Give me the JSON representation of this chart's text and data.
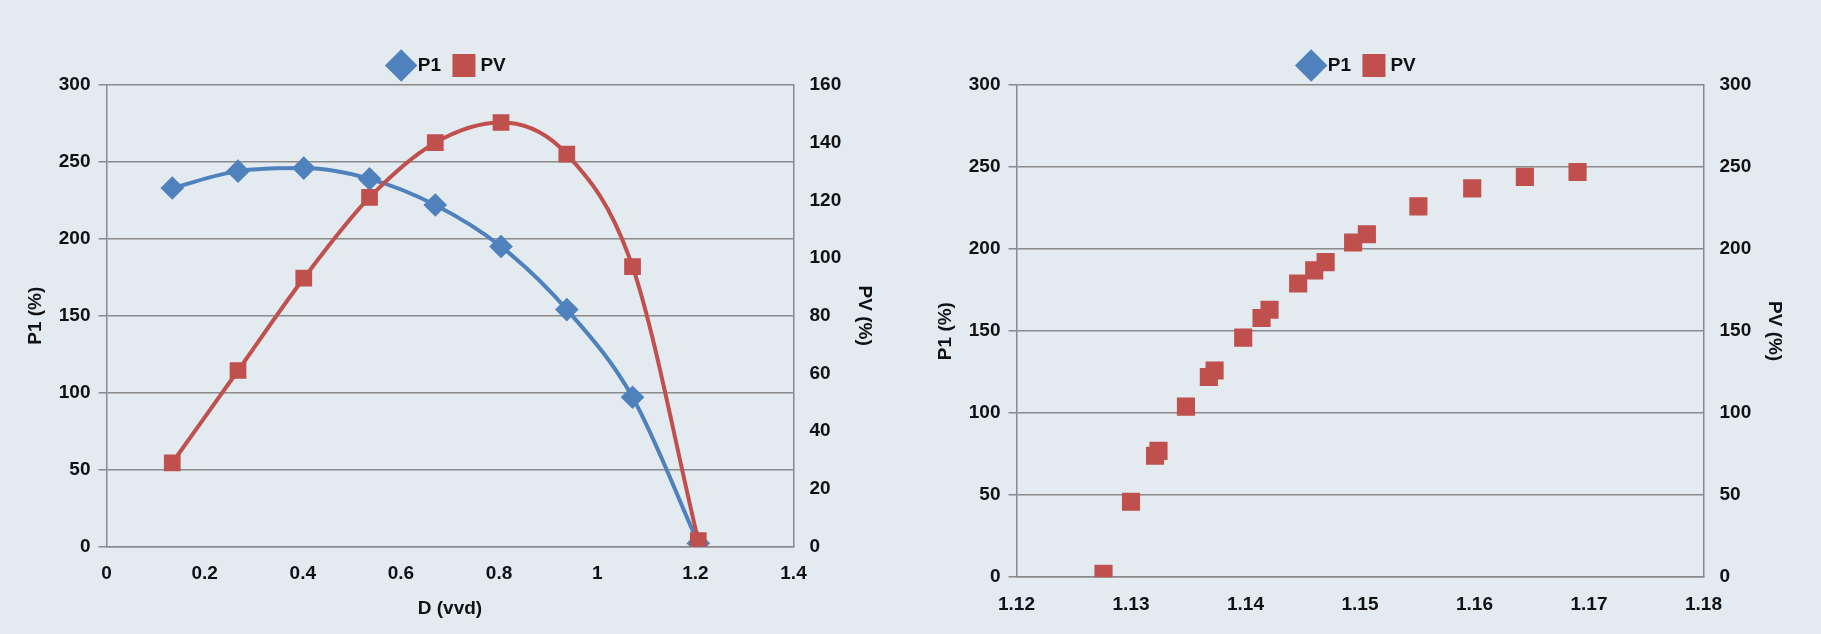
{
  "chart_data": [
    {
      "type": "line",
      "xlabel": "D (vvd)",
      "ylabel": "P1 (%)",
      "y2label": "PV (%)",
      "xlim": [
        0,
        1.4
      ],
      "xticks": [
        0,
        0.2,
        0.4,
        0.6,
        0.8,
        1,
        1.2,
        1.4
      ],
      "ylim": [
        0,
        300
      ],
      "yticks": [
        0,
        50,
        100,
        150,
        200,
        250,
        300
      ],
      "y2lim": [
        0,
        160
      ],
      "y2ticks": [
        0,
        20,
        40,
        60,
        80,
        100,
        120,
        140,
        160
      ],
      "grid": "y",
      "legend": "top",
      "x": [
        0.134,
        0.268,
        0.402,
        0.536,
        0.67,
        0.804,
        0.938,
        1.072,
        1.206
      ],
      "series": [
        {
          "name": "P1",
          "color": "#4f81bd",
          "marker": "diamond",
          "values": [
            233,
            244,
            246,
            239,
            222,
            195,
            154,
            97,
            2
          ]
        },
        {
          "name": "PV",
          "color": "#c0504d",
          "marker": "square",
          "axis": "y2",
          "values": [
            29,
            61,
            93,
            121,
            140,
            147,
            136,
            97,
            2
          ]
        }
      ]
    },
    {
      "type": "scatter",
      "ylabel": "P1 (%)",
      "y2label": "PV (%)",
      "xlim": [
        1.12,
        1.18
      ],
      "xticks": [
        1.12,
        1.13,
        1.14,
        1.15,
        1.16,
        1.17,
        1.18
      ],
      "ylim": [
        0,
        300
      ],
      "yticks": [
        0,
        50,
        100,
        150,
        200,
        250,
        300
      ],
      "y2lim": [
        0,
        300
      ],
      "y2ticks": [
        0,
        50,
        100,
        150,
        200,
        250,
        300
      ],
      "grid": "y",
      "legend": "top",
      "x": [
        1.1276,
        1.13,
        1.1321,
        1.1324,
        1.1348,
        1.1368,
        1.1373,
        1.1398,
        1.1414,
        1.1421,
        1.1446,
        1.146,
        1.147,
        1.1494,
        1.1506,
        1.1551,
        1.1598,
        1.1644,
        1.169
      ],
      "series": [
        {
          "name": "P1",
          "color": "#4f81bd",
          "marker": "diamond",
          "values": [
            null,
            null,
            null,
            null,
            null,
            null,
            null,
            null,
            null,
            null,
            null,
            null,
            null,
            null,
            null,
            null,
            null,
            null,
            null
          ]
        },
        {
          "name": "PV",
          "color": "#c0504d",
          "marker": "square",
          "axis": "y2",
          "values": [
            2,
            46,
            74,
            77,
            104,
            122,
            126,
            146,
            158,
            163,
            179,
            187,
            192,
            204,
            209,
            226,
            237,
            244,
            247
          ]
        }
      ]
    }
  ]
}
